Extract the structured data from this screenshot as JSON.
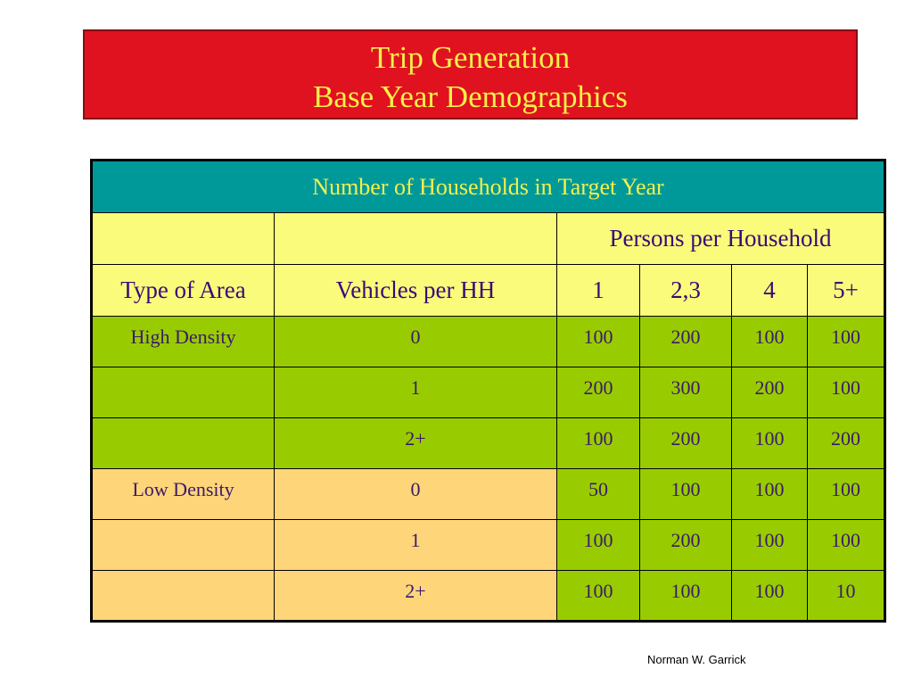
{
  "title": {
    "line1": "Trip Generation",
    "line2": "Base Year Demographics"
  },
  "table": {
    "caption": "Number of Households in Target Year",
    "group_header": "Persons per Household",
    "col_headers": [
      "Type of Area",
      "Vehicles per HH",
      "1",
      "2,3",
      "4",
      "5+"
    ],
    "rows": [
      {
        "area": "High Density",
        "vehicles": "0",
        "values": [
          "100",
          "200",
          "100",
          "100"
        ]
      },
      {
        "area": "",
        "vehicles": "1",
        "values": [
          "200",
          "300",
          "200",
          "100"
        ]
      },
      {
        "area": "",
        "vehicles": "2+",
        "values": [
          "100",
          "200",
          "100",
          "200"
        ]
      },
      {
        "area": "Low Density",
        "vehicles": "0",
        "values": [
          "50",
          "100",
          "100",
          "100"
        ]
      },
      {
        "area": "",
        "vehicles": "1",
        "values": [
          "100",
          "200",
          "100",
          "100"
        ]
      },
      {
        "area": "",
        "vehicles": "2+",
        "values": [
          "100",
          "100",
          "100",
          "10"
        ]
      }
    ]
  },
  "footer": {
    "author": "Norman W. Garrick"
  },
  "colors": {
    "title_bg": "#e0121f",
    "title_text": "#f5f04a",
    "caption_bg": "#00999a",
    "header_bg": "#fafb7a",
    "high_density_bg": "#99cc00",
    "low_density_bg": "#ffd57a"
  }
}
